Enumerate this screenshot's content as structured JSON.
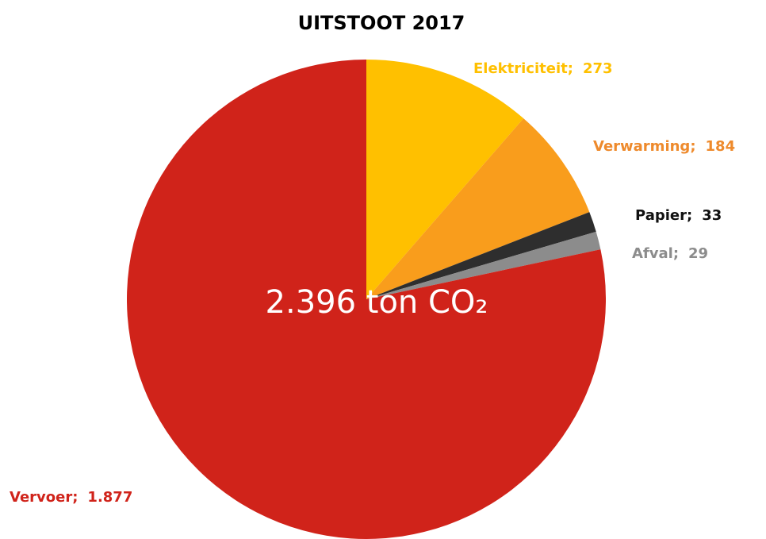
{
  "chart_data": {
    "type": "pie",
    "title": "UITSTOOT 2017",
    "annotation": "2.396 ton CO₂",
    "categories": [
      "Elektriciteit",
      "Verwarming",
      "Papier",
      "Afval",
      "Vervoer"
    ],
    "values": [
      273,
      184,
      33,
      29,
      1877
    ],
    "value_labels": [
      "273",
      "184",
      "33",
      "29",
      "1.877"
    ],
    "label_separator": ";",
    "colors": [
      "#ffc000",
      "#f99d1c",
      "#2e2e2e",
      "#8c8c8c",
      "#d0231a"
    ],
    "label_colors": [
      "#ffc000",
      "#ee8a2c",
      "#111111",
      "#8c8c8c",
      "#d0231a"
    ]
  }
}
